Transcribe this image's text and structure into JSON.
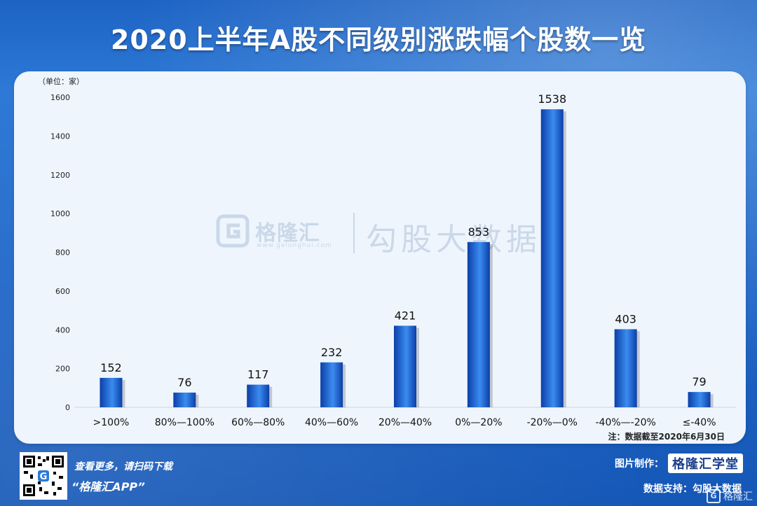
{
  "title": "2020上半年A股不同级别涨跌幅个股数一览",
  "colors": {
    "background": "#1f66c8",
    "panel": "#eef5fd",
    "bar_dark": "#0b3fa8",
    "bar_light": "#3b8cf0",
    "axis_text": "#222222"
  },
  "chart_data": {
    "type": "bar",
    "unit_label": "（单位：家）",
    "categories": [
      ">100%",
      "80%—100%",
      "60%—80%",
      "40%—60%",
      "20%—40%",
      "0%—20%",
      "-20%—0%",
      "-40%—-20%",
      "≤-40%"
    ],
    "values": [
      152,
      76,
      117,
      232,
      421,
      853,
      1538,
      403,
      79
    ],
    "yticks": [
      0,
      200,
      400,
      600,
      800,
      1000,
      1200,
      1400,
      1600
    ],
    "ylim": [
      0,
      1600
    ],
    "grid": false,
    "note": "注：数据截至2020年6月30日"
  },
  "watermark": {
    "brand": "格隆汇",
    "url": "www.gelonghui.com",
    "sub": "勾股大数据"
  },
  "footer": {
    "scan_text": "查看更多，请扫码下载",
    "app_text": "“格隆汇APP”",
    "maker_label": "图片制作：",
    "maker_badge": "格隆汇学堂",
    "data_support": "数据支持：勾股大数据",
    "corner_brand": "格隆汇",
    "icons": [
      "qr-code-icon",
      "gelonghui-logo-icon"
    ]
  }
}
